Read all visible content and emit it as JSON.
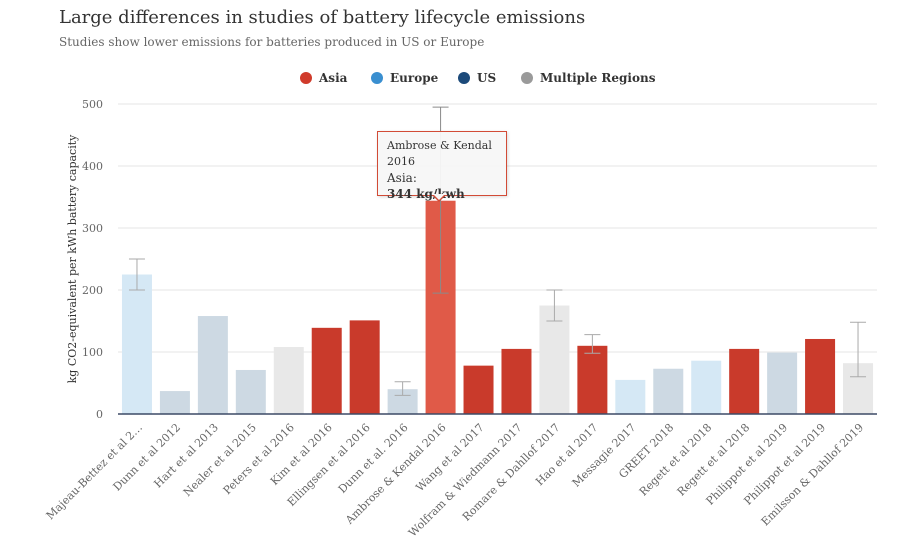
{
  "chart_data": {
    "type": "bar",
    "title": "Large differences in studies of battery lifecycle emissions",
    "subtitle": "Studies show lower emissions for batteries produced in US or Europe",
    "ylabel": "kg CO2-equivalent per kWh battery capacity",
    "xlabel": "",
    "ylim": [
      0,
      500
    ],
    "yticks": [
      0,
      100,
      200,
      300,
      400,
      500
    ],
    "legend": [
      {
        "name": "Asia",
        "color": "#d03b2b"
      },
      {
        "name": "Europe",
        "color": "#3a8fd0"
      },
      {
        "name": "US",
        "color": "#1c4a7a"
      },
      {
        "name": "Multiple Regions",
        "color": "#9a9a9a"
      }
    ],
    "bar_colors": {
      "Asia": "#c93a2b",
      "Europe": "#d5e8f5",
      "US": "#cdd9e3",
      "Multiple Regions": "#e8e8e8"
    },
    "highlight_color": "#e05a48",
    "categories": [
      "Majeau-Bettez et al 2…",
      "Dunn et al 2012",
      "Hart et al 2013",
      "Nealer et al 2015",
      "Peters et al 2016",
      "Kim et al 2016",
      "Ellingsen et al 2016",
      "Dunn et al. 2016",
      "Ambrose & Kendal 2016",
      "Wang et al 2017",
      "Wolfram & Wiedmann 2017",
      "Romare & Dahllof 2017",
      "Hao et al 2017",
      "Messagie 2017",
      "GREET 2018",
      "Regett et al 2018",
      "Regett et al 2018",
      "Philippot et al 2019",
      "Philippot et al 2019",
      "Emilsson & Dahllof 2019"
    ],
    "regions": [
      "Europe",
      "US",
      "US",
      "US",
      "Multiple Regions",
      "Asia",
      "Asia",
      "US",
      "Asia",
      "Asia",
      "Asia",
      "Multiple Regions",
      "Asia",
      "Europe",
      "US",
      "Europe",
      "Asia",
      "US",
      "Asia",
      "Multiple Regions"
    ],
    "values": [
      225,
      37,
      158,
      71,
      108,
      139,
      151,
      40,
      344,
      78,
      105,
      175,
      110,
      55,
      73,
      86,
      105,
      99,
      121,
      82
    ],
    "error_bars": [
      [
        200,
        250
      ],
      null,
      null,
      null,
      null,
      null,
      null,
      [
        30,
        52
      ],
      [
        195,
        495
      ],
      null,
      null,
      [
        150,
        200
      ],
      [
        98,
        128
      ],
      null,
      null,
      null,
      null,
      null,
      null,
      [
        60,
        148
      ]
    ],
    "highlight_index": 8
  },
  "tooltip": {
    "study": "Ambrose & Kendal 2016",
    "region": "Asia:",
    "value": "344 kg/kwh"
  }
}
